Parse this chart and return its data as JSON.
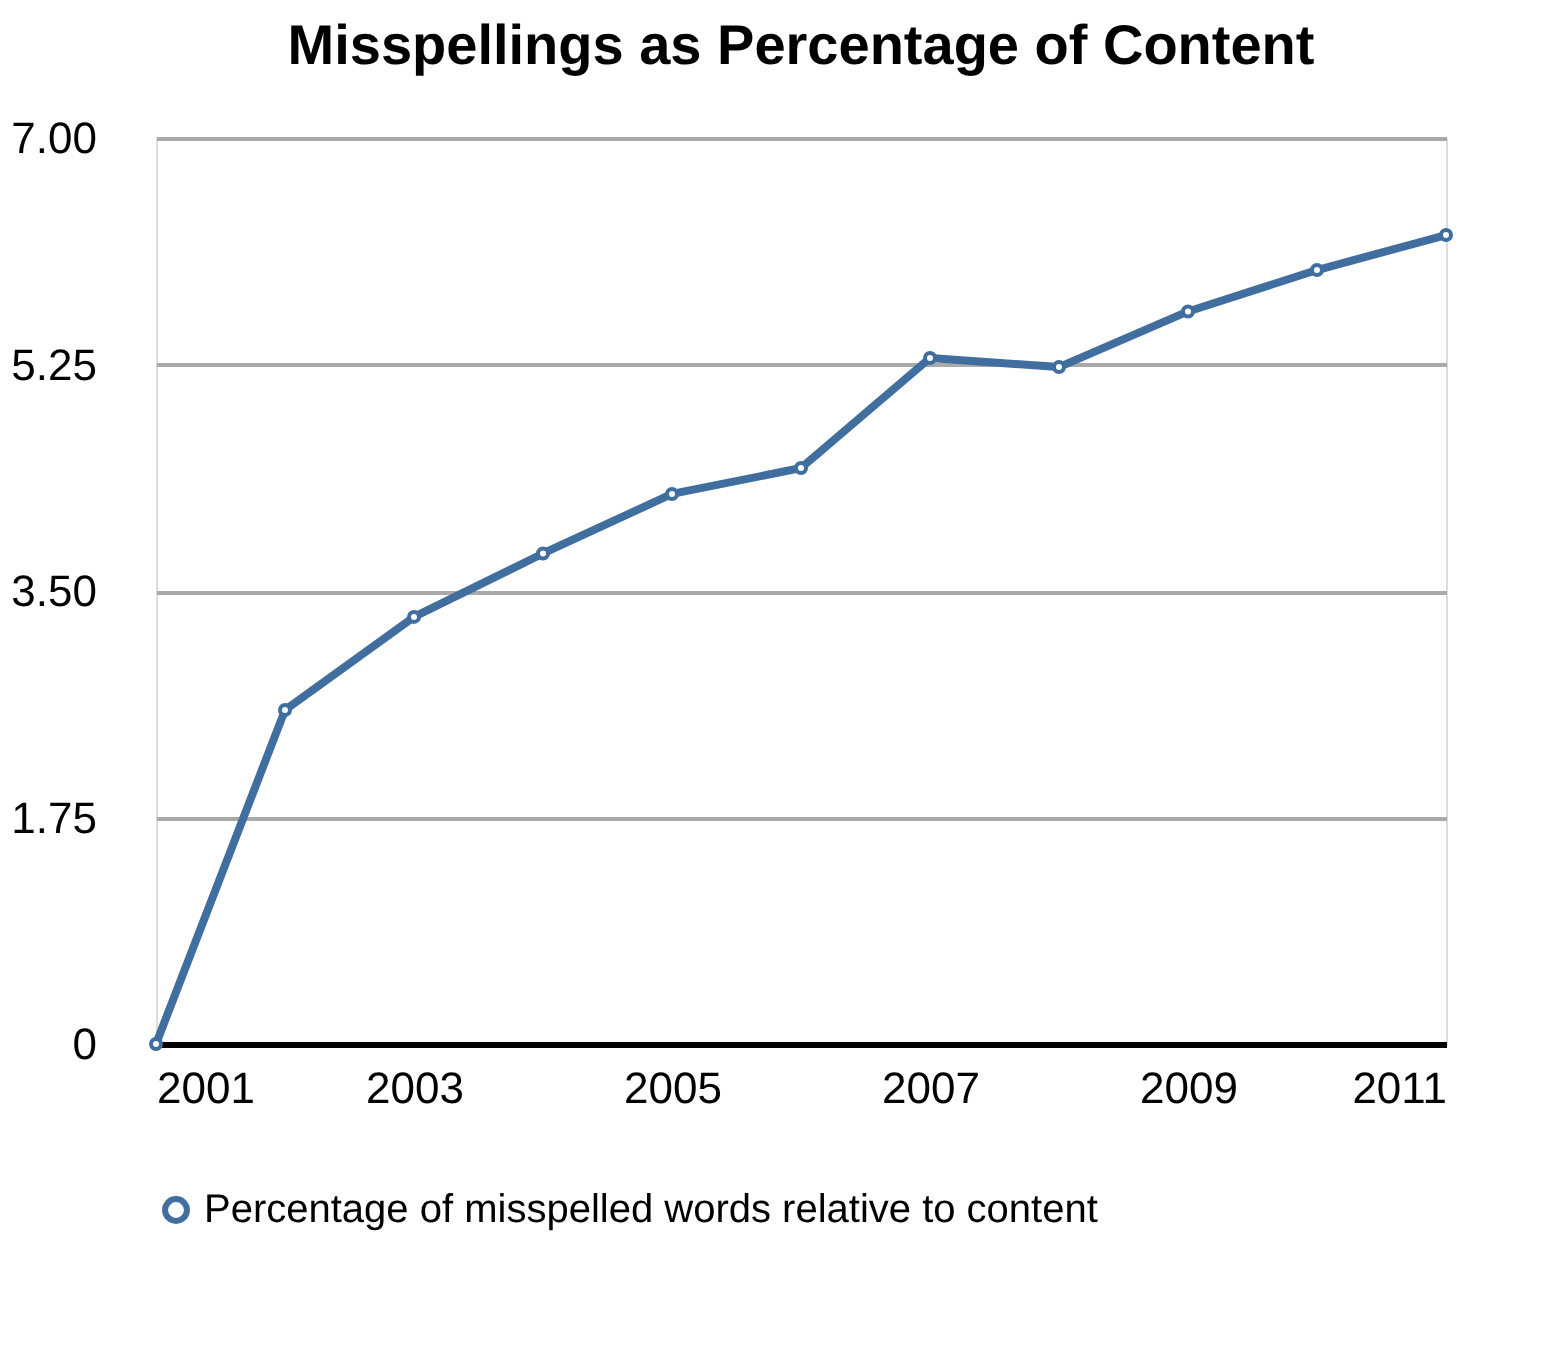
{
  "chart_data": {
    "type": "line",
    "title": "Misspellings as Percentage of Content",
    "x": [
      2001,
      2002,
      2003,
      2004,
      2005,
      2006,
      2007,
      2008,
      2009,
      2010,
      2011
    ],
    "series": [
      {
        "name": "Percentage of misspelled words relative to content",
        "color": "#3f6e9f",
        "values": [
          0,
          2.58,
          3.3,
          3.79,
          4.25,
          4.45,
          5.3,
          5.23,
          5.66,
          5.98,
          6.25
        ]
      }
    ],
    "xlim": [
      2001,
      2011
    ],
    "xticks": [
      2001,
      2003,
      2005,
      2007,
      2009,
      2011
    ],
    "ylim": [
      0,
      7
    ],
    "yticks": [
      {
        "value": 0,
        "label": "0"
      },
      1.75,
      {
        "value": 3.5,
        "label": "3.50"
      },
      5.25,
      {
        "value": 7,
        "label": "7.00"
      }
    ],
    "grid": "y",
    "legend": "bottom",
    "marker": "circle",
    "line_style": "solid"
  }
}
